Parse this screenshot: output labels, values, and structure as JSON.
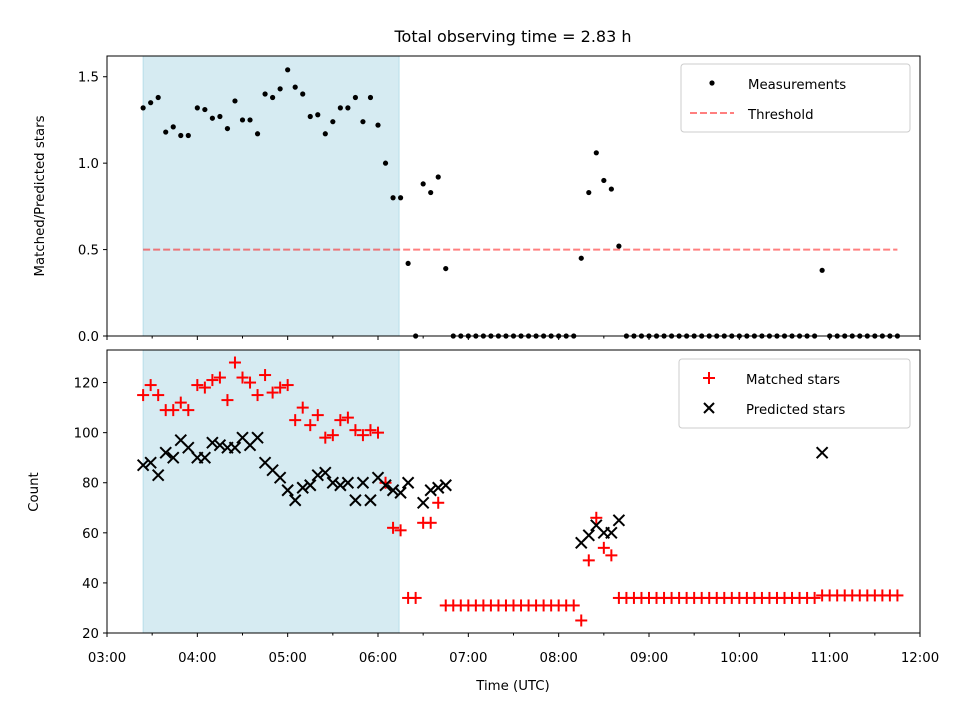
{
  "title": "Total observing time = 2.83 h",
  "colors": {
    "shade": "#add8e6",
    "threshold": "#ff0000",
    "matched": "#ff0000",
    "predicted": "#000000",
    "measurement": "#000000"
  },
  "chart_data": [
    {
      "type": "scatter",
      "panel": "top",
      "ylabel": "Matched/Predicted stars",
      "xlabel": "",
      "xlim": [
        "03:00",
        "12:00"
      ],
      "ylim": [
        0,
        1.62
      ],
      "yticks": [
        "0.0",
        "0.5",
        "1.0",
        "1.5"
      ],
      "shaded_interval": [
        "03:24",
        "06:14"
      ],
      "legend": {
        "position": "upper right",
        "entries": [
          "Measurements",
          "Threshold"
        ]
      },
      "threshold": {
        "name": "Threshold",
        "value": 0.5,
        "x_range": [
          "03:24",
          "11:45"
        ]
      },
      "series": [
        {
          "name": "Measurements",
          "points": [
            [
              "03:24",
              1.32
            ],
            [
              "03:29",
              1.35
            ],
            [
              "03:34",
              1.38
            ],
            [
              "03:39",
              1.18
            ],
            [
              "03:44",
              1.21
            ],
            [
              "03:49",
              1.16
            ],
            [
              "03:54",
              1.16
            ],
            [
              "04:00",
              1.32
            ],
            [
              "04:05",
              1.31
            ],
            [
              "04:10",
              1.26
            ],
            [
              "04:15",
              1.27
            ],
            [
              "04:20",
              1.2
            ],
            [
              "04:25",
              1.36
            ],
            [
              "04:30",
              1.25
            ],
            [
              "04:35",
              1.25
            ],
            [
              "04:40",
              1.17
            ],
            [
              "04:45",
              1.4
            ],
            [
              "04:50",
              1.38
            ],
            [
              "04:55",
              1.43
            ],
            [
              "05:00",
              1.54
            ],
            [
              "05:05",
              1.44
            ],
            [
              "05:10",
              1.4
            ],
            [
              "05:15",
              1.27
            ],
            [
              "05:20",
              1.28
            ],
            [
              "05:25",
              1.17
            ],
            [
              "05:30",
              1.24
            ],
            [
              "05:35",
              1.32
            ],
            [
              "05:40",
              1.32
            ],
            [
              "05:45",
              1.38
            ],
            [
              "05:50",
              1.24
            ],
            [
              "05:55",
              1.38
            ],
            [
              "06:00",
              1.22
            ],
            [
              "06:05",
              1.0
            ],
            [
              "06:10",
              0.8
            ],
            [
              "06:15",
              0.8
            ],
            [
              "06:20",
              0.42
            ],
            [
              "06:25",
              0.0
            ],
            [
              "06:30",
              0.88
            ],
            [
              "06:35",
              0.83
            ],
            [
              "06:40",
              0.92
            ],
            [
              "06:45",
              0.39
            ],
            [
              "06:50",
              0.0
            ],
            [
              "06:55",
              0.0
            ],
            [
              "07:00",
              0.0
            ],
            [
              "07:05",
              0.0
            ],
            [
              "07:10",
              0.0
            ],
            [
              "07:15",
              0.0
            ],
            [
              "07:20",
              0.0
            ],
            [
              "07:25",
              0.0
            ],
            [
              "07:30",
              0.0
            ],
            [
              "07:35",
              0.0
            ],
            [
              "07:40",
              0.0
            ],
            [
              "07:45",
              0.0
            ],
            [
              "07:50",
              0.0
            ],
            [
              "07:55",
              0.0
            ],
            [
              "08:00",
              0.0
            ],
            [
              "08:05",
              0.0
            ],
            [
              "08:10",
              0.0
            ],
            [
              "08:15",
              0.45
            ],
            [
              "08:20",
              0.83
            ],
            [
              "08:25",
              1.06
            ],
            [
              "08:30",
              0.9
            ],
            [
              "08:35",
              0.85
            ],
            [
              "08:40",
              0.52
            ],
            [
              "08:45",
              0.0
            ],
            [
              "08:50",
              0.0
            ],
            [
              "08:55",
              0.0
            ],
            [
              "09:00",
              0.0
            ],
            [
              "09:05",
              0.0
            ],
            [
              "09:10",
              0.0
            ],
            [
              "09:15",
              0.0
            ],
            [
              "09:20",
              0.0
            ],
            [
              "09:25",
              0.0
            ],
            [
              "09:30",
              0.0
            ],
            [
              "09:35",
              0.0
            ],
            [
              "09:40",
              0.0
            ],
            [
              "09:45",
              0.0
            ],
            [
              "09:50",
              0.0
            ],
            [
              "09:55",
              0.0
            ],
            [
              "10:00",
              0.0
            ],
            [
              "10:05",
              0.0
            ],
            [
              "10:10",
              0.0
            ],
            [
              "10:15",
              0.0
            ],
            [
              "10:20",
              0.0
            ],
            [
              "10:25",
              0.0
            ],
            [
              "10:30",
              0.0
            ],
            [
              "10:35",
              0.0
            ],
            [
              "10:40",
              0.0
            ],
            [
              "10:45",
              0.0
            ],
            [
              "10:50",
              0.0
            ],
            [
              "10:55",
              0.38
            ],
            [
              "11:00",
              0.0
            ],
            [
              "11:05",
              0.0
            ],
            [
              "11:10",
              0.0
            ],
            [
              "11:15",
              0.0
            ],
            [
              "11:20",
              0.0
            ],
            [
              "11:25",
              0.0
            ],
            [
              "11:30",
              0.0
            ],
            [
              "11:35",
              0.0
            ],
            [
              "11:40",
              0.0
            ],
            [
              "11:45",
              0.0
            ]
          ]
        }
      ]
    },
    {
      "type": "scatter",
      "panel": "bottom",
      "ylabel": "Count",
      "xlabel": "Time (UTC)",
      "xlim": [
        "03:00",
        "12:00"
      ],
      "ylim": [
        20,
        133
      ],
      "yticks": [
        "20",
        "40",
        "60",
        "80",
        "100",
        "120"
      ],
      "xticks": [
        "03:00",
        "04:00",
        "05:00",
        "06:00",
        "07:00",
        "08:00",
        "09:00",
        "10:00",
        "11:00",
        "12:00"
      ],
      "shaded_interval": [
        "03:24",
        "06:14"
      ],
      "legend": {
        "position": "upper right",
        "entries": [
          "Matched stars",
          "Predicted stars"
        ]
      },
      "series": [
        {
          "name": "Matched stars",
          "marker": "+",
          "points": [
            [
              "03:24",
              115
            ],
            [
              "03:29",
              119
            ],
            [
              "03:34",
              115
            ],
            [
              "03:39",
              109
            ],
            [
              "03:44",
              109
            ],
            [
              "03:49",
              112
            ],
            [
              "03:54",
              109
            ],
            [
              "04:00",
              119
            ],
            [
              "04:05",
              118
            ],
            [
              "04:10",
              121
            ],
            [
              "04:15",
              122
            ],
            [
              "04:20",
              113
            ],
            [
              "04:25",
              128
            ],
            [
              "04:30",
              122
            ],
            [
              "04:35",
              120
            ],
            [
              "04:40",
              115
            ],
            [
              "04:45",
              123
            ],
            [
              "04:50",
              116
            ],
            [
              "04:55",
              118
            ],
            [
              "05:00",
              119
            ],
            [
              "05:05",
              105
            ],
            [
              "05:10",
              110
            ],
            [
              "05:15",
              103
            ],
            [
              "05:20",
              107
            ],
            [
              "05:25",
              98
            ],
            [
              "05:30",
              99
            ],
            [
              "05:35",
              105
            ],
            [
              "05:40",
              106
            ],
            [
              "05:45",
              101
            ],
            [
              "05:50",
              99
            ],
            [
              "05:55",
              101
            ],
            [
              "06:00",
              100
            ],
            [
              "06:05",
              80
            ],
            [
              "06:10",
              62
            ],
            [
              "06:15",
              61
            ],
            [
              "06:20",
              34
            ],
            [
              "06:25",
              34
            ],
            [
              "06:30",
              64
            ],
            [
              "06:35",
              64
            ],
            [
              "06:40",
              72
            ],
            [
              "06:45",
              31
            ],
            [
              "06:50",
              31
            ],
            [
              "06:55",
              31
            ],
            [
              "07:00",
              31
            ],
            [
              "07:05",
              31
            ],
            [
              "07:10",
              31
            ],
            [
              "07:15",
              31
            ],
            [
              "07:20",
              31
            ],
            [
              "07:25",
              31
            ],
            [
              "07:30",
              31
            ],
            [
              "07:35",
              31
            ],
            [
              "07:40",
              31
            ],
            [
              "07:45",
              31
            ],
            [
              "07:50",
              31
            ],
            [
              "07:55",
              31
            ],
            [
              "08:00",
              31
            ],
            [
              "08:05",
              31
            ],
            [
              "08:10",
              31
            ],
            [
              "08:15",
              25
            ],
            [
              "08:20",
              49
            ],
            [
              "08:25",
              66
            ],
            [
              "08:30",
              54
            ],
            [
              "08:35",
              51
            ],
            [
              "08:40",
              34
            ],
            [
              "08:45",
              34
            ],
            [
              "08:50",
              34
            ],
            [
              "08:55",
              34
            ],
            [
              "09:00",
              34
            ],
            [
              "09:05",
              34
            ],
            [
              "09:10",
              34
            ],
            [
              "09:15",
              34
            ],
            [
              "09:20",
              34
            ],
            [
              "09:25",
              34
            ],
            [
              "09:30",
              34
            ],
            [
              "09:35",
              34
            ],
            [
              "09:40",
              34
            ],
            [
              "09:45",
              34
            ],
            [
              "09:50",
              34
            ],
            [
              "09:55",
              34
            ],
            [
              "10:00",
              34
            ],
            [
              "10:05",
              34
            ],
            [
              "10:10",
              34
            ],
            [
              "10:15",
              34
            ],
            [
              "10:20",
              34
            ],
            [
              "10:25",
              34
            ],
            [
              "10:30",
              34
            ],
            [
              "10:35",
              34
            ],
            [
              "10:40",
              34
            ],
            [
              "10:45",
              34
            ],
            [
              "10:50",
              34
            ],
            [
              "10:55",
              35
            ],
            [
              "11:00",
              35
            ],
            [
              "11:05",
              35
            ],
            [
              "11:10",
              35
            ],
            [
              "11:15",
              35
            ],
            [
              "11:20",
              35
            ],
            [
              "11:25",
              35
            ],
            [
              "11:30",
              35
            ],
            [
              "11:35",
              35
            ],
            [
              "11:40",
              35
            ],
            [
              "11:45",
              35
            ]
          ]
        },
        {
          "name": "Predicted stars",
          "marker": "x",
          "points": [
            [
              "03:24",
              87
            ],
            [
              "03:29",
              88
            ],
            [
              "03:34",
              83
            ],
            [
              "03:39",
              92
            ],
            [
              "03:44",
              90
            ],
            [
              "03:49",
              97
            ],
            [
              "03:54",
              94
            ],
            [
              "04:00",
              90
            ],
            [
              "04:05",
              90
            ],
            [
              "04:10",
              96
            ],
            [
              "04:15",
              95
            ],
            [
              "04:20",
              94
            ],
            [
              "04:25",
              94
            ],
            [
              "04:30",
              98
            ],
            [
              "04:35",
              95
            ],
            [
              "04:40",
              98
            ],
            [
              "04:45",
              88
            ],
            [
              "04:50",
              85
            ],
            [
              "04:55",
              82
            ],
            [
              "05:00",
              77
            ],
            [
              "05:05",
              73
            ],
            [
              "05:10",
              78
            ],
            [
              "05:15",
              79
            ],
            [
              "05:20",
              83
            ],
            [
              "05:25",
              84
            ],
            [
              "05:30",
              80
            ],
            [
              "05:35",
              79
            ],
            [
              "05:40",
              80
            ],
            [
              "05:45",
              73
            ],
            [
              "05:50",
              80
            ],
            [
              "05:55",
              73
            ],
            [
              "06:00",
              82
            ],
            [
              "06:05",
              79
            ],
            [
              "06:10",
              77
            ],
            [
              "06:15",
              76
            ],
            [
              "06:20",
              80
            ],
            [
              "06:30",
              72
            ],
            [
              "06:35",
              77
            ],
            [
              "06:40",
              78
            ],
            [
              "06:45",
              79
            ],
            [
              "08:15",
              56
            ],
            [
              "08:20",
              59
            ],
            [
              "08:25",
              63
            ],
            [
              "08:30",
              60
            ],
            [
              "08:35",
              60
            ],
            [
              "08:40",
              65
            ],
            [
              "10:55",
              92
            ]
          ]
        }
      ]
    }
  ]
}
